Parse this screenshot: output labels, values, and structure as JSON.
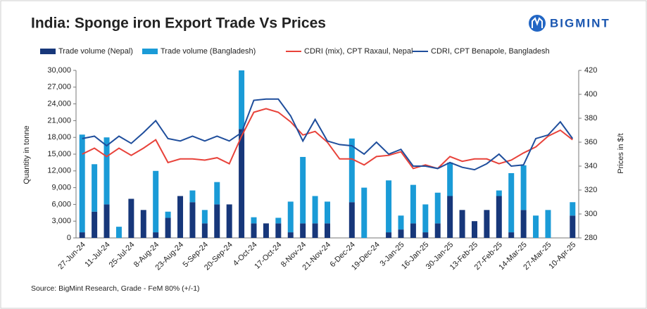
{
  "brand": "BIGMINT",
  "chart_data": {
    "type": "bar-line",
    "title": "India: Sponge iron Export Trade Vs Prices",
    "y_label": "Quantity in tonne",
    "y2_label": "Prices in $/t",
    "source": "Source: BigMint Research, Grade - FeM 80% (+/-1)",
    "categories": [
      "27-Jun-24",
      null,
      "11-Jul-24",
      null,
      "25-Jul-24",
      null,
      "8-Aug-24",
      null,
      "23-Aug-24",
      null,
      "5-Sep-24",
      null,
      "20-Sep-24",
      null,
      "4-Oct-24",
      null,
      "17-Oct-24",
      null,
      "8-Nov-24",
      null,
      "21-Nov-24",
      null,
      "6-Dec-24",
      null,
      "19-Dec-24",
      null,
      "3-Jan-25",
      null,
      "16-Jan-25",
      null,
      "30-Jan-25",
      null,
      "13-Feb-25",
      null,
      "27-Feb-25",
      null,
      "14-Mar-25",
      null,
      "27-Mar-25",
      null,
      "10-Apr-25"
    ],
    "series": [
      {
        "name": "Trade volume (Nepal)",
        "type": "bar",
        "color": "#17377a",
        "values": [
          1000,
          4700,
          6000,
          0,
          7000,
          5000,
          1000,
          3600,
          7500,
          6400,
          2600,
          6000,
          6000,
          19500,
          2600,
          2600,
          2600,
          1000,
          2600,
          2600,
          2600,
          0,
          6400,
          0,
          0,
          1000,
          1500,
          2600,
          1000,
          2600,
          7500,
          5000,
          3000,
          5000,
          7500,
          1000,
          5000,
          0,
          0,
          0,
          4000
        ]
      },
      {
        "name": "Trade volume (Bangladesh)",
        "type": "bar",
        "color": "#1a9bd7",
        "values": [
          17500,
          8500,
          12000,
          2000,
          0,
          0,
          11000,
          1100,
          0,
          2100,
          2400,
          4000,
          0,
          10500,
          1100,
          0,
          1000,
          5500,
          11900,
          4900,
          3900,
          0,
          11400,
          9000,
          0,
          9300,
          2500,
          6900,
          5000,
          5500,
          6000,
          0,
          0,
          0,
          1000,
          10600,
          8000,
          4000,
          5000,
          0,
          2400
        ]
      },
      {
        "name": "CDRI (mix), CPT Raxaul, Nepal",
        "type": "line",
        "axis": "y2",
        "color": "#e8423a",
        "values": [
          350,
          355,
          348,
          355,
          349,
          355,
          362,
          343,
          346,
          346,
          345,
          347,
          342,
          365,
          385,
          388,
          385,
          377,
          366,
          369,
          360,
          346,
          346,
          341,
          348,
          349,
          352,
          338,
          341,
          338,
          348,
          344,
          346,
          346,
          342,
          345,
          351,
          356,
          365,
          370,
          362
        ]
      },
      {
        "name": "CDRI, CPT Benapole, Bangladesh",
        "type": "line",
        "axis": "y2",
        "color": "#1f4e9c",
        "values": [
          363,
          365,
          357,
          365,
          359,
          368,
          378,
          363,
          361,
          365,
          361,
          365,
          361,
          368,
          395,
          396,
          396,
          382,
          361,
          379,
          361,
          358,
          357,
          350,
          360,
          350,
          354,
          340,
          340,
          338,
          343,
          339,
          337,
          342,
          350,
          340,
          341,
          363,
          366,
          377,
          363
        ]
      }
    ],
    "ylim": [
      0,
      30000
    ],
    "yticks": [
      0,
      {
        "value": 3000,
        "label": "3,000"
      },
      {
        "value": 6000,
        "label": "6,000"
      },
      {
        "value": 9000,
        "label": "9,000"
      },
      {
        "value": 12000,
        "label": "12,000"
      },
      {
        "value": 15000,
        "label": "15,000"
      },
      {
        "value": 18000,
        "label": "18,000"
      },
      {
        "value": 21000,
        "label": "21,000"
      },
      {
        "value": 24000,
        "label": "24,000"
      },
      {
        "value": 27000,
        "label": "27,000"
      },
      {
        "value": 30000,
        "label": "30,000"
      }
    ],
    "y2lim": [
      280,
      420
    ],
    "y2ticks": [
      280,
      300,
      320,
      340,
      360,
      380,
      400,
      420
    ],
    "grid": false
  }
}
